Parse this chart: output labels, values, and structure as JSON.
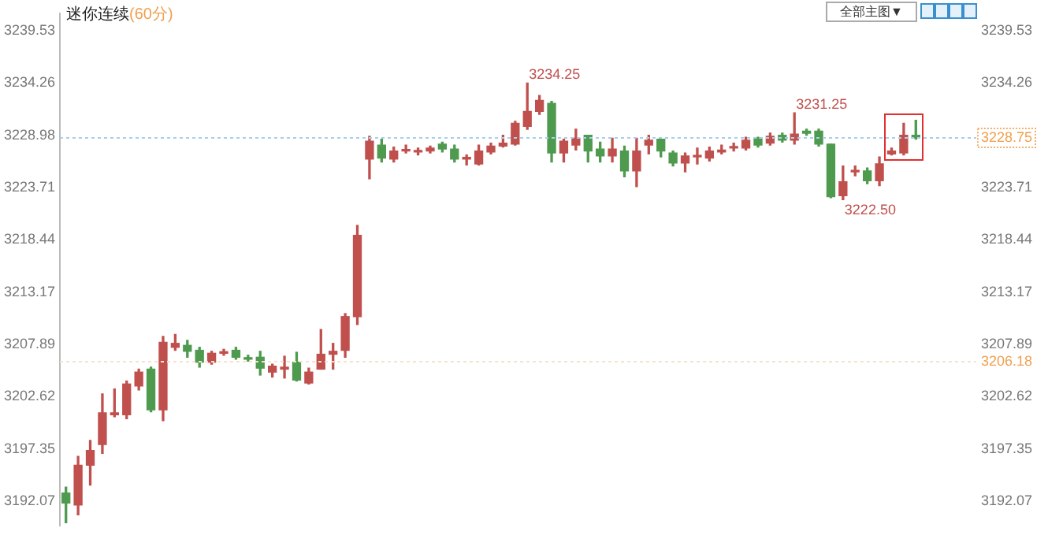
{
  "chart_data": {
    "type": "candlestick",
    "title": "迷你连续",
    "subtitle": "(60分)",
    "categories": [
      null,
      null,
      null,
      null,
      null,
      null,
      null,
      null,
      null,
      null,
      null,
      null,
      null,
      null,
      null,
      null,
      null,
      null,
      null,
      null,
      null,
      null,
      null,
      null,
      null,
      null,
      null,
      null,
      null,
      null,
      null,
      null,
      null,
      null,
      null,
      null,
      null,
      null,
      null,
      null,
      null,
      null,
      null,
      null,
      null,
      null,
      null,
      null,
      null,
      null,
      null,
      null,
      null,
      null,
      null,
      null,
      null,
      null,
      null,
      null,
      null,
      null,
      null,
      null,
      null,
      null,
      null,
      null,
      null,
      null,
      null
    ],
    "ohlc": [
      [
        3192.9,
        3193.5,
        3189.9,
        3191.9
      ],
      [
        3191.7,
        3196.6,
        3190.7,
        3195.7
      ],
      [
        3195.7,
        3198.2,
        3193.7,
        3197.2
      ],
      [
        3197.8,
        3202.9,
        3196.9,
        3201.0
      ],
      [
        3200.8,
        3203.4,
        3200.6,
        3201.0
      ],
      [
        3200.8,
        3204.2,
        3200.4,
        3203.9
      ],
      [
        3203.7,
        3205.4,
        3203.3,
        3205.1
      ],
      [
        3205.4,
        3205.6,
        3201.1,
        3201.3
      ],
      [
        3201.3,
        3208.7,
        3200.2,
        3208.1
      ],
      [
        3207.6,
        3208.9,
        3207.3,
        3208.0
      ],
      [
        3207.8,
        3208.3,
        3206.6,
        3207.2
      ],
      [
        3207.3,
        3207.6,
        3205.6,
        3206.1
      ],
      [
        3206.1,
        3207.2,
        3205.9,
        3207.0
      ],
      [
        3207.0,
        3207.4,
        3206.8,
        3207.1
      ],
      [
        3207.3,
        3207.6,
        3206.4,
        3206.6
      ],
      [
        3206.5,
        3206.8,
        3206.2,
        3206.4
      ],
      [
        3206.6,
        3207.2,
        3204.8,
        3205.5
      ],
      [
        3205.1,
        3205.9,
        3204.6,
        3205.7
      ],
      [
        3205.4,
        3206.7,
        3204.5,
        3205.6
      ],
      [
        3206.1,
        3207.1,
        3204.2,
        3204.3
      ],
      [
        3204.0,
        3205.5,
        3203.9,
        3205.1
      ],
      [
        3205.4,
        3209.4,
        3205.4,
        3206.9
      ],
      [
        3206.9,
        3208.0,
        3205.4,
        3207.2
      ],
      [
        3207.3,
        3211.0,
        3206.6,
        3210.7
      ],
      [
        3210.7,
        3219.9,
        3209.9,
        3218.9
      ],
      [
        3226.6,
        3228.9,
        3224.6,
        3228.4
      ],
      [
        3228.0,
        3228.6,
        3226.3,
        3226.7
      ],
      [
        3226.6,
        3227.8,
        3226.3,
        3227.4
      ],
      [
        3227.4,
        3228.0,
        3227.2,
        3227.5
      ],
      [
        3227.3,
        3227.7,
        3227.0,
        3227.4
      ],
      [
        3227.4,
        3227.9,
        3227.2,
        3227.7
      ],
      [
        3228.1,
        3228.3,
        3227.3,
        3227.6
      ],
      [
        3227.6,
        3228.0,
        3226.3,
        3226.6
      ],
      [
        3226.6,
        3227.0,
        3226.0,
        3226.7
      ],
      [
        3226.1,
        3228.0,
        3226.0,
        3227.4
      ],
      [
        3227.3,
        3228.2,
        3227.1,
        3227.9
      ],
      [
        3227.9,
        3229.0,
        3227.8,
        3228.2
      ],
      [
        3228.1,
        3230.4,
        3228.0,
        3230.2
      ],
      [
        3229.9,
        3234.25,
        3229.6,
        3231.4
      ],
      [
        3231.4,
        3233.0,
        3231.1,
        3232.5
      ],
      [
        3232.2,
        3232.4,
        3226.3,
        3227.2
      ],
      [
        3227.2,
        3228.6,
        3226.3,
        3228.4
      ],
      [
        3228.0,
        3229.6,
        3227.5,
        3228.7
      ],
      [
        3229.0,
        3229.0,
        3226.3,
        3227.4
      ],
      [
        3227.6,
        3228.3,
        3226.3,
        3226.9
      ],
      [
        3226.9,
        3228.7,
        3226.3,
        3227.6
      ],
      [
        3227.4,
        3227.9,
        3224.8,
        3225.4
      ],
      [
        3225.4,
        3228.7,
        3223.8,
        3227.4
      ],
      [
        3228.0,
        3229.0,
        3227.1,
        3228.5
      ],
      [
        3228.6,
        3228.6,
        3226.8,
        3227.4
      ],
      [
        3227.2,
        3227.4,
        3225.9,
        3226.2
      ],
      [
        3226.2,
        3227.2,
        3225.3,
        3226.9
      ],
      [
        3226.8,
        3227.7,
        3226.1,
        3226.9
      ],
      [
        3226.7,
        3227.8,
        3226.4,
        3227.4
      ],
      [
        3227.3,
        3228.0,
        3227.1,
        3227.5
      ],
      [
        3227.7,
        3228.2,
        3227.4,
        3227.8
      ],
      [
        3227.7,
        3228.8,
        3227.5,
        3228.5
      ],
      [
        3228.6,
        3228.8,
        3227.8,
        3228.0
      ],
      [
        3228.2,
        3229.2,
        3228.0,
        3228.9
      ],
      [
        3229.0,
        3229.2,
        3228.3,
        3228.5
      ],
      [
        3228.5,
        3231.25,
        3228.1,
        3229.1
      ],
      [
        3229.4,
        3229.6,
        3229.0,
        3229.2
      ],
      [
        3229.4,
        3229.6,
        3227.9,
        3228.1
      ],
      [
        3228.1,
        3228.1,
        3222.7,
        3222.8
      ],
      [
        3222.9,
        3225.9,
        3222.5,
        3224.3
      ],
      [
        3225.3,
        3225.9,
        3224.9,
        3225.4
      ],
      [
        3225.4,
        3225.7,
        3224.1,
        3224.4
      ],
      [
        3224.4,
        3226.8,
        3223.9,
        3226.1
      ],
      [
        3227.1,
        3227.7,
        3227.0,
        3227.4
      ],
      [
        3227.2,
        3230.2,
        3227.0,
        3229.0
      ],
      [
        3229.0,
        3230.5,
        3228.6,
        3228.75
      ]
    ],
    "colors": [
      "#4e9a4e",
      "#c0504d",
      "#c0504d",
      "#c0504d",
      "#c0504d",
      "#c0504d",
      "#c0504d",
      "#4e9a4e",
      "#c0504d",
      "#c0504d",
      "#4e9a4e",
      "#4e9a4e",
      "#c0504d",
      "#c0504d",
      "#4e9a4e",
      "#4e9a4e",
      "#4e9a4e",
      "#c0504d",
      "#c0504d",
      "#4e9a4e",
      "#c0504d",
      "#c0504d",
      "#c0504d",
      "#c0504d",
      "#c0504d",
      "#c0504d",
      "#4e9a4e",
      "#c0504d",
      "#c0504d",
      "#c0504d",
      "#c0504d",
      "#4e9a4e",
      "#4e9a4e",
      "#c0504d",
      "#c0504d",
      "#c0504d",
      "#c0504d",
      "#c0504d",
      "#c0504d",
      "#c0504d",
      "#4e9a4e",
      "#c0504d",
      "#c0504d",
      "#4e9a4e",
      "#4e9a4e",
      "#c0504d",
      "#4e9a4e",
      "#c0504d",
      "#c0504d",
      "#4e9a4e",
      "#4e9a4e",
      "#c0504d",
      "#c0504d",
      "#c0504d",
      "#c0504d",
      "#c0504d",
      "#c0504d",
      "#4e9a4e",
      "#c0504d",
      "#4e9a4e",
      "#c0504d",
      "#4e9a4e",
      "#4e9a4e",
      "#4e9a4e",
      "#c0504d",
      "#c0504d",
      "#4e9a4e",
      "#c0504d",
      "#c0504d",
      "#c0504d",
      "#4e9a4e"
    ],
    "ylim": [
      3189.6,
      3241.3
    ],
    "yticks": [
      3192.07,
      3197.35,
      3202.62,
      3207.89,
      3213.17,
      3218.44,
      3223.71,
      3234.26,
      3239.53
    ],
    "y2lim": [
      3189.6,
      3241.3
    ],
    "y2ticks": [
      3192.07,
      3197.35,
      3202.62,
      3207.89,
      3213.17,
      3218.44,
      3223.71,
      3228.98,
      3234.26,
      3239.53
    ],
    "ref_lines": [
      {
        "axis": "y",
        "value": 3228.75,
        "label": "3228.75",
        "color": "#a8cfee",
        "line_style": "dotted"
      },
      {
        "axis": "y",
        "value": 3206.18,
        "label": "3206.18",
        "color": "#f8e2cc",
        "line_style": "dotted"
      }
    ],
    "annotations": [
      "3234.25",
      "3231.25",
      "3222.50",
      "全部主图▼"
    ]
  }
}
